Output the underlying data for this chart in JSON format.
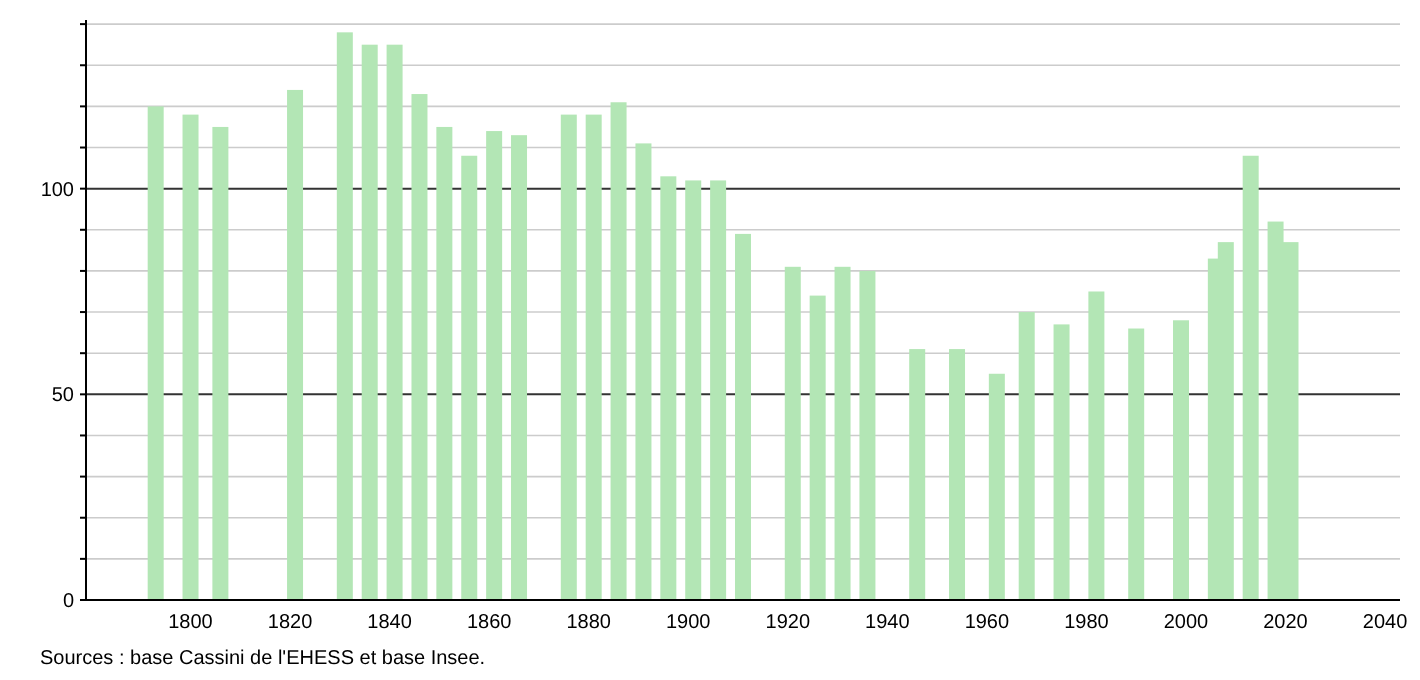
{
  "chart_data": {
    "type": "bar",
    "x": [
      1793,
      1800,
      1806,
      1821,
      1831,
      1836,
      1841,
      1846,
      1851,
      1856,
      1861,
      1866,
      1876,
      1881,
      1886,
      1891,
      1896,
      1901,
      1906,
      1911,
      1921,
      1926,
      1931,
      1936,
      1946,
      1954,
      1962,
      1968,
      1975,
      1982,
      1990,
      1999,
      2006,
      2008,
      2013,
      2018,
      2021
    ],
    "values": [
      120,
      118,
      115,
      124,
      138,
      135,
      135,
      123,
      115,
      108,
      114,
      113,
      118,
      118,
      121,
      111,
      103,
      102,
      102,
      89,
      81,
      74,
      81,
      80,
      61,
      61,
      55,
      70,
      67,
      75,
      66,
      68,
      83,
      87,
      108,
      92,
      87
    ],
    "color": "#b3e6b5",
    "xlim": [
      1779,
      2043
    ],
    "xticks": [
      1800,
      1820,
      1840,
      1860,
      1880,
      1900,
      1920,
      1940,
      1960,
      1980,
      2000,
      2020,
      2040
    ],
    "ylim": [
      0,
      141
    ],
    "yticks": [
      0,
      {
        "value": 10,
        "label": null
      },
      {
        "value": 20,
        "label": null
      },
      {
        "value": 30,
        "label": null
      },
      {
        "value": 40,
        "label": null
      },
      50,
      {
        "value": 60,
        "label": null
      },
      {
        "value": 70,
        "label": null
      },
      {
        "value": 80,
        "label": null
      },
      {
        "value": 90,
        "label": null
      },
      100,
      {
        "value": 110,
        "label": null
      },
      {
        "value": 120,
        "label": null
      },
      {
        "value": 130,
        "label": null
      },
      {
        "value": 140,
        "label": null
      }
    ],
    "grid": true,
    "annotations": [
      "Sources : base Cassini de l'EHESS et base Insee."
    ]
  }
}
